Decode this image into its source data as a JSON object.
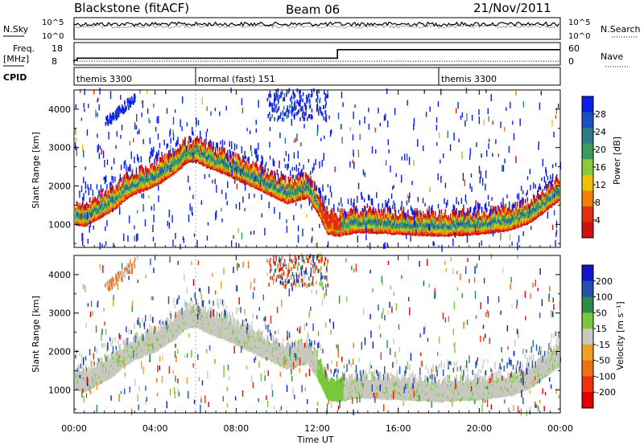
{
  "header": {
    "title": "Blackstone (fitACF)",
    "beam": "Beam 06",
    "date": "21/Nov/2011"
  },
  "nsky_panel": {
    "left_label": "N.Sky",
    "left_ticks": [
      "10^5",
      "10^0"
    ],
    "right_label": "N.Search",
    "right_ticks": [
      "10^5",
      "10^0"
    ]
  },
  "freq_panel": {
    "left_label_top": "Freq.",
    "left_label_bottom": "[MHz]",
    "left_ticks": [
      18,
      8
    ],
    "right_label": "Nave",
    "right_ticks": [
      60,
      0
    ],
    "freq_steps": [
      {
        "t": 0.0,
        "mhz": 9.0
      },
      {
        "t": 0.15,
        "mhz": 10.3
      },
      {
        "t": 13.0,
        "mhz": 15.6
      },
      {
        "t": 24.0,
        "mhz": 15.6
      }
    ],
    "nave_level": 2,
    "nave_range": [
      0,
      60
    ]
  },
  "cpid_panel": {
    "label": "CPID",
    "segments": [
      {
        "start": 0,
        "end": 6,
        "text": "themis 3300"
      },
      {
        "start": 6,
        "end": 18,
        "text": "normal (fast) 151"
      },
      {
        "start": 18,
        "end": 24,
        "text": "themis 3300"
      }
    ]
  },
  "chart_data": {
    "type": "heatmap",
    "xlabel": "Time UT",
    "x_ticks": [
      "00:00",
      "04:00",
      "08:00",
      "12:00",
      "16:00",
      "20:00",
      "00:00"
    ],
    "x_range_hours": [
      0,
      24
    ],
    "ylabel": "Slant Range [km]",
    "y_ticks": [
      1000,
      2000,
      3000,
      4000
    ],
    "ylim_km": [
      400,
      4500
    ],
    "trace_km": [
      {
        "t": 0.0,
        "km": 1250
      },
      {
        "t": 0.5,
        "km": 1200
      },
      {
        "t": 1.0,
        "km": 1350
      },
      {
        "t": 1.5,
        "km": 1500
      },
      {
        "t": 2.0,
        "km": 1650
      },
      {
        "t": 2.5,
        "km": 1900
      },
      {
        "t": 3.0,
        "km": 2050
      },
      {
        "t": 4.0,
        "km": 2250
      },
      {
        "t": 5.0,
        "km": 2600
      },
      {
        "t": 5.5,
        "km": 2850
      },
      {
        "t": 6.0,
        "km": 2900
      },
      {
        "t": 6.5,
        "km": 2750
      },
      {
        "t": 7.5,
        "km": 2550
      },
      {
        "t": 8.5,
        "km": 2300
      },
      {
        "t": 9.5,
        "km": 2050
      },
      {
        "t": 10.5,
        "km": 1800
      },
      {
        "t": 11.5,
        "km": 1950
      },
      {
        "t": 12.0,
        "km": 1550
      },
      {
        "t": 12.5,
        "km": 1000
      },
      {
        "t": 13.0,
        "km": 950
      },
      {
        "t": 14.0,
        "km": 1050
      },
      {
        "t": 16.0,
        "km": 1000
      },
      {
        "t": 18.0,
        "km": 950
      },
      {
        "t": 20.0,
        "km": 1000
      },
      {
        "t": 21.5,
        "km": 1100
      },
      {
        "t": 22.5,
        "km": 1300
      },
      {
        "t": 23.5,
        "km": 1700
      },
      {
        "t": 24.0,
        "km": 1900
      }
    ],
    "panels": [
      {
        "name": "power",
        "colorbar_label": "Power [dB]",
        "colorbar_ticks": [
          4,
          8,
          12,
          16,
          20,
          24,
          28
        ],
        "colorbar_colors": [
          "#0a1ee6",
          "#1a4fc0",
          "#2d7a8a",
          "#3c9a5a",
          "#8cc83c",
          "#f0c000",
          "#f08000",
          "#e03010",
          "#d01010"
        ]
      },
      {
        "name": "velocity",
        "colorbar_label": "Velocity [m s⁻¹]",
        "colorbar_ticks": [
          200,
          100,
          50,
          15,
          -15,
          -50,
          -100,
          -200
        ],
        "colorbar_colors": [
          "#1414c8",
          "#2050b0",
          "#2e8a4a",
          "#78c83c",
          "#c8c8c0",
          "#f0a020",
          "#f07010",
          "#f03010",
          "#e00000"
        ]
      }
    ]
  }
}
